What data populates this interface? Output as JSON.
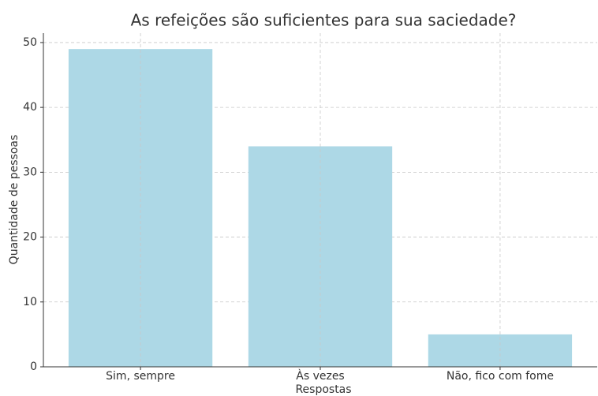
{
  "chart_data": {
    "type": "bar",
    "title": "As refeições são suficientes para sua saciedade?",
    "x_label": "Respostas",
    "y_label": "Quantidade de pessoas",
    "categories": [
      "Sim, sempre",
      "Às vezes",
      "Não, fico com fome"
    ],
    "values": [
      49,
      34,
      5
    ],
    "color": "#add8e6",
    "ylim": [
      0,
      51.45
    ],
    "yticks": [
      0,
      10,
      20,
      30,
      40,
      50
    ],
    "grid": true
  }
}
